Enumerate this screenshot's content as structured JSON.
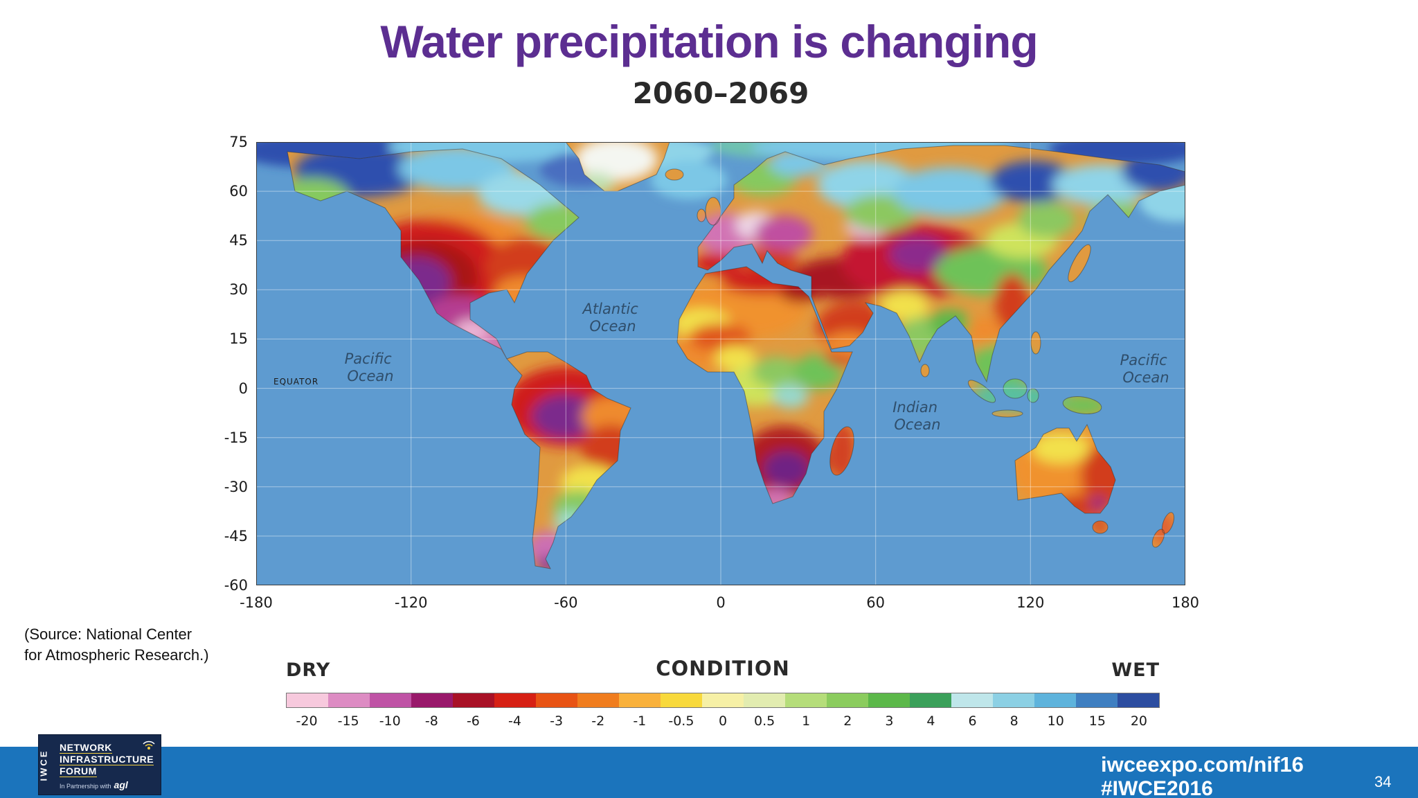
{
  "slide": {
    "title": "Water precipitation is changing",
    "source_line1": "(Source: National Center",
    "source_line2": "for Atmospheric Research.)",
    "page_number": "34"
  },
  "footer": {
    "url": "iwceexpo.com/nif16",
    "hashtag": "#IWCE2016",
    "bar_color": "#1b74bc"
  },
  "logo": {
    "brand": "IWCE",
    "line1": "NETWORK",
    "line2": "INFRASTRUCTURE",
    "line3": "FORUM",
    "partnership": "In Partnership with",
    "partner": "agl"
  },
  "map": {
    "title": "2060–2069",
    "equator_label": "EQUATOR",
    "ocean_labels": [
      {
        "name": "pacific-west",
        "line1": "Pacific",
        "line2": "Ocean"
      },
      {
        "name": "atlantic",
        "line1": "Atlantic",
        "line2": "Ocean"
      },
      {
        "name": "indian",
        "line1": "Indian",
        "line2": "Ocean"
      },
      {
        "name": "pacific-east",
        "line1": "Pacific",
        "line2": "Ocean"
      }
    ],
    "lat_ticks": [
      "75",
      "60",
      "45",
      "30",
      "15",
      "0",
      "-15",
      "-30",
      "-45",
      "-60"
    ],
    "lon_ticks": [
      "-180",
      "-120",
      "-60",
      "0",
      "60",
      "120",
      "180"
    ],
    "ocean_color": "#5e9bd0"
  },
  "legend": {
    "dry": "DRY",
    "condition": "CONDITION",
    "wet": "WET",
    "ticks": [
      "-20",
      "-15",
      "-10",
      "-8",
      "-6",
      "-4",
      "-3",
      "-2",
      "-1",
      "-0.5",
      "0",
      "0.5",
      "1",
      "2",
      "3",
      "4",
      "6",
      "8",
      "10",
      "15",
      "20"
    ],
    "colors": [
      "#f7c9dd",
      "#dd8cc3",
      "#bf53a5",
      "#99196b",
      "#a81126",
      "#d62014",
      "#e85314",
      "#f07d1e",
      "#f9b13c",
      "#f8d93c",
      "#f6f0a6",
      "#e2ecb0",
      "#b5dd7a",
      "#8bcc5e",
      "#5cb84a",
      "#3ba05a",
      "#bfe6ea",
      "#8cd0e4",
      "#5eb3dc",
      "#3f7fc1",
      "#2c4da0"
    ]
  },
  "chart_data": {
    "type": "heatmap",
    "title": "2060–2069",
    "subtitle": "Water precipitation is changing",
    "x_range": [
      -180,
      180
    ],
    "y_range": [
      -60,
      75
    ],
    "x_ticks": [
      -180,
      -120,
      -60,
      0,
      60,
      120,
      180
    ],
    "y_ticks": [
      75,
      60,
      45,
      30,
      15,
      0,
      -15,
      -30,
      -45,
      -60
    ],
    "grid": true,
    "colorbar": {
      "left_label": "DRY",
      "center_label": "CONDITION",
      "right_label": "WET",
      "ticks": [
        -20,
        -15,
        -10,
        -8,
        -6,
        -4,
        -3,
        -2,
        -1,
        -0.5,
        0,
        0.5,
        1,
        2,
        3,
        4,
        6,
        8,
        10,
        15,
        20
      ],
      "colors": [
        "#f7c9dd",
        "#dd8cc3",
        "#bf53a5",
        "#99196b",
        "#a81126",
        "#d62014",
        "#e85314",
        "#f07d1e",
        "#f9b13c",
        "#f8d93c",
        "#f6f0a6",
        "#e2ecb0",
        "#b5dd7a",
        "#8bcc5e",
        "#5cb84a",
        "#3ba05a",
        "#bfe6ea",
        "#8cd0e4",
        "#5eb3dc",
        "#3f7fc1",
        "#2c4da0"
      ]
    }
  }
}
